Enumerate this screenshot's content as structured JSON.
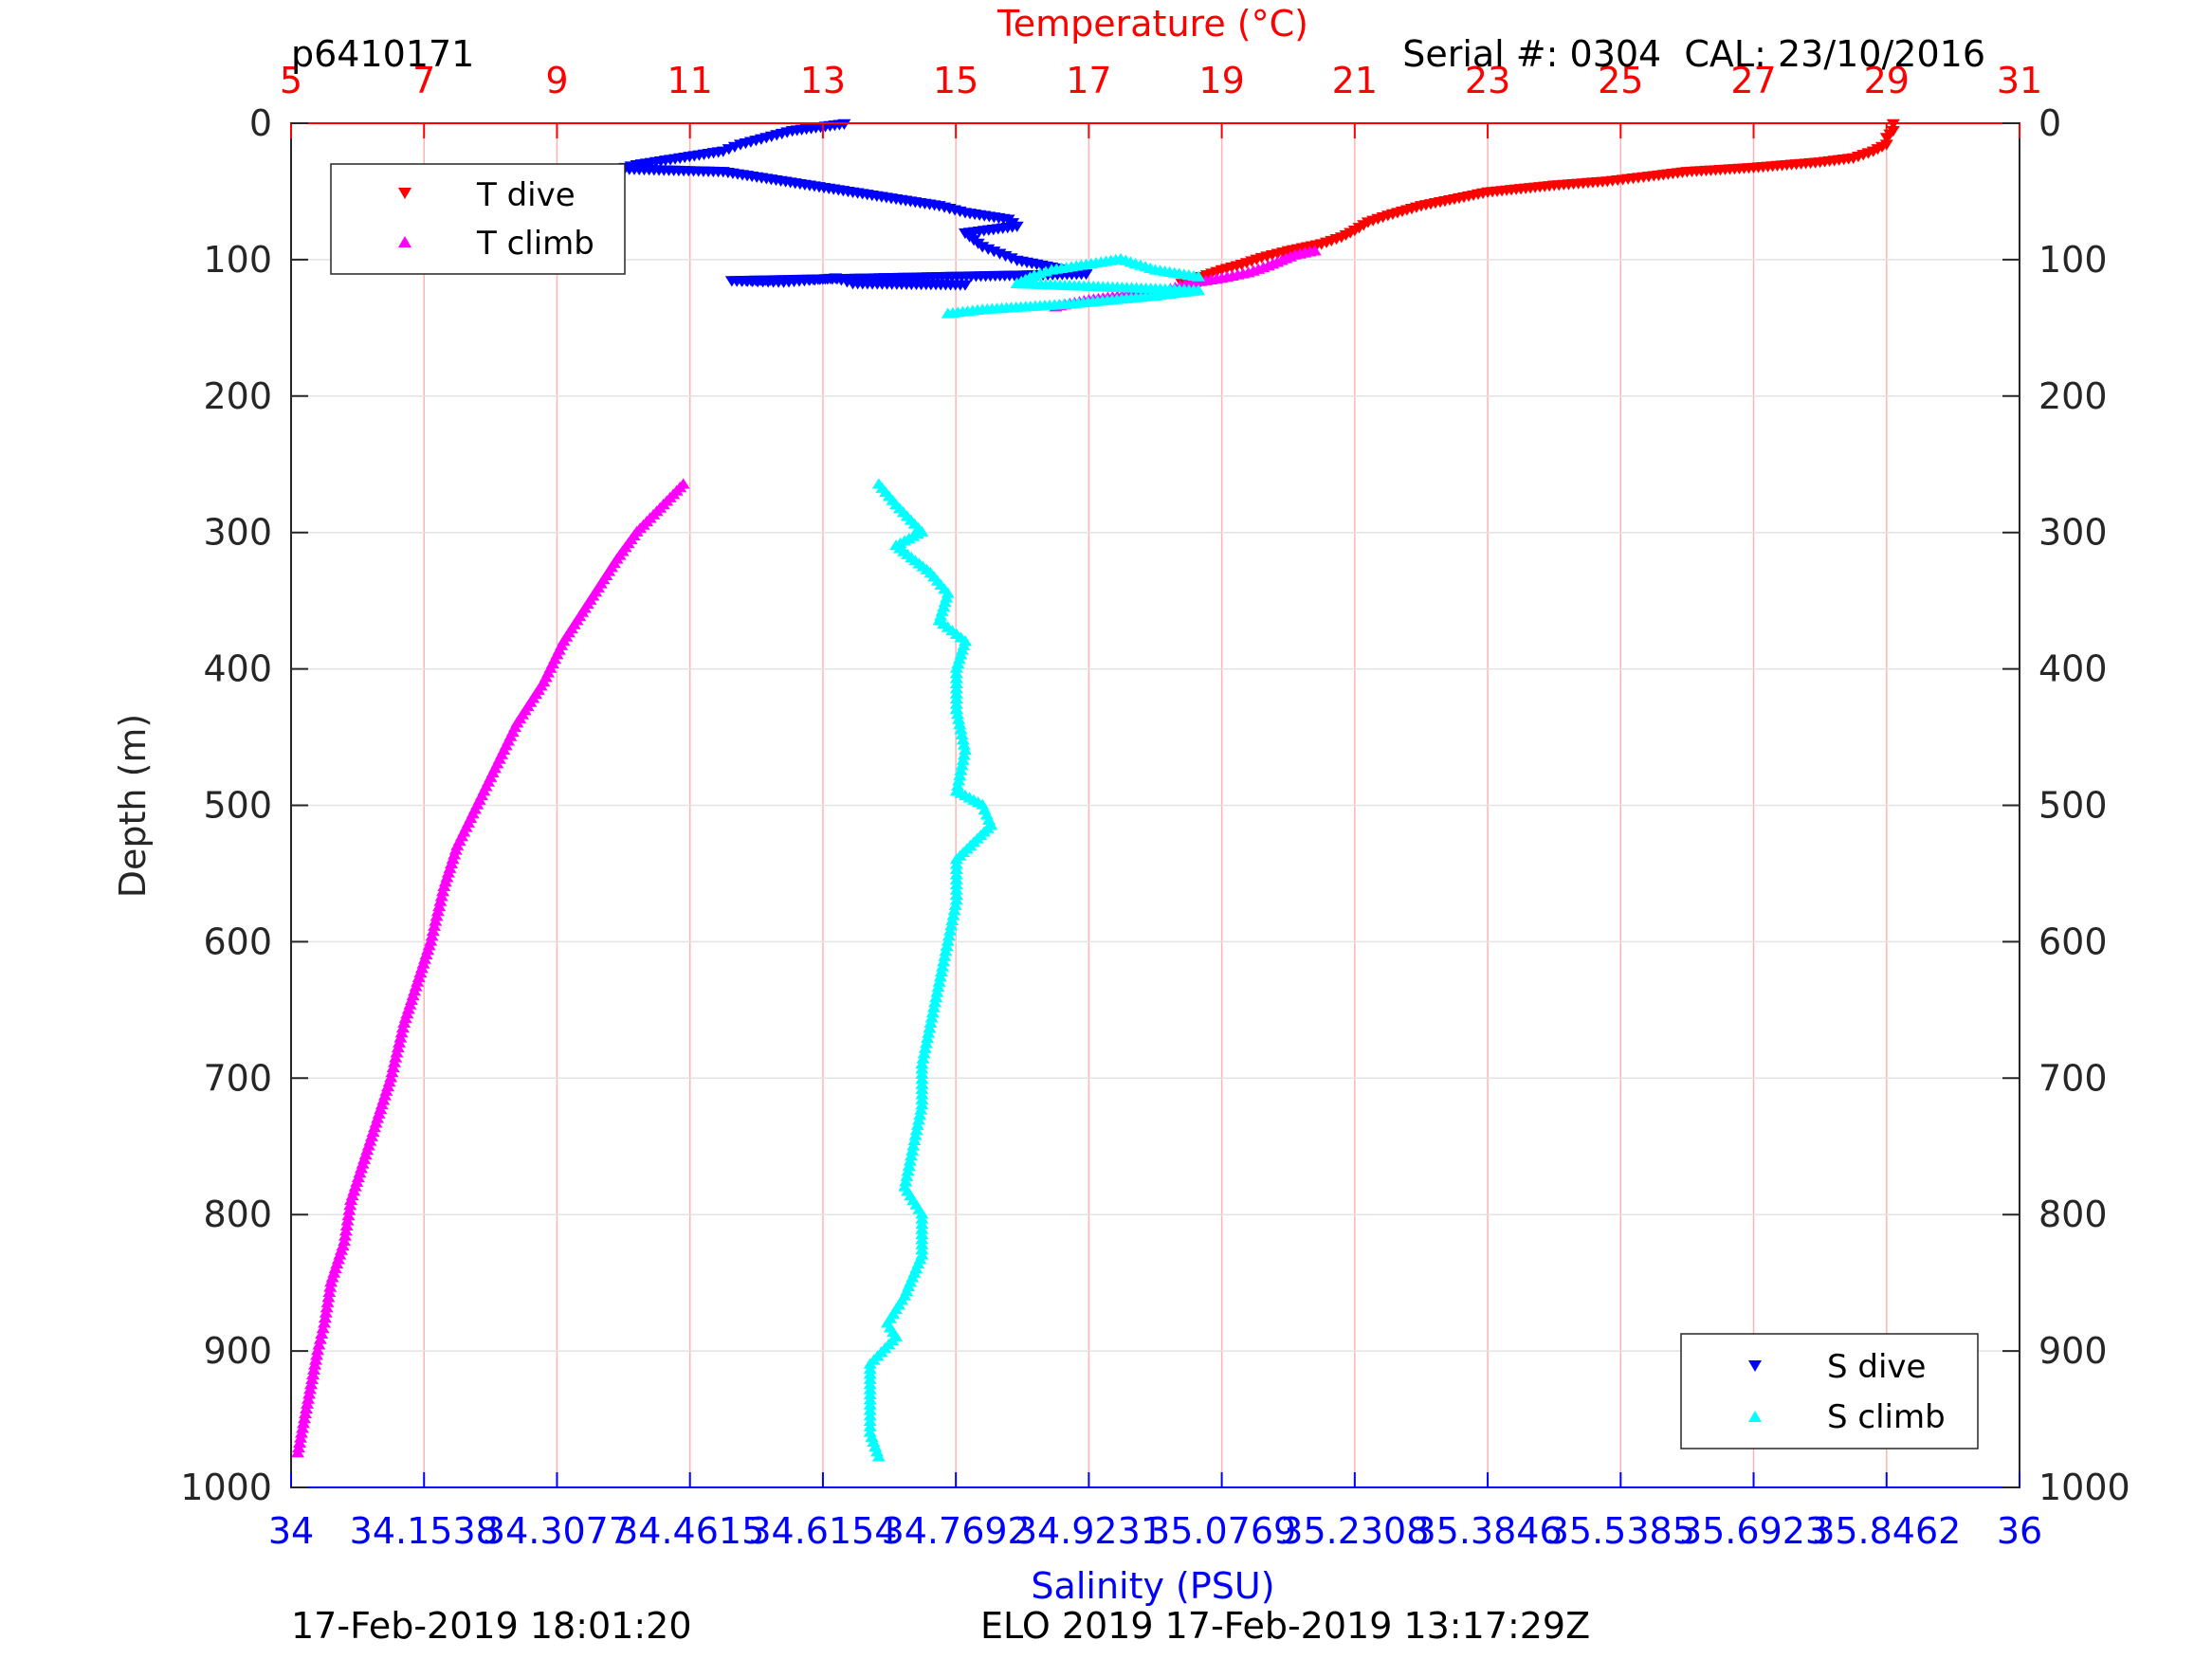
{
  "header": {
    "profile_id": "p6410171",
    "serial_cal": "Serial #: 0304  CAL: 23/10/2016"
  },
  "footer": {
    "left_timestamp": "17-Feb-2019 18:01:20",
    "mission": "ELO 2019 17-Feb-2019 13:17:29Z"
  },
  "colors": {
    "temperature_axis": "#ff0000",
    "salinity_axis": "#0000ff",
    "t_dive": "#ff0000",
    "t_climb": "#ff00ff",
    "s_dive": "#0000ff",
    "s_climb": "#00ffff"
  },
  "chart_data": {
    "type": "scatter",
    "title": "",
    "ylabel": "Depth (m)",
    "ylim": [
      0,
      1000
    ],
    "y_reversed": true,
    "y_ticks": [
      "0",
      "100",
      "200",
      "300",
      "400",
      "500",
      "600",
      "700",
      "800",
      "900",
      "1000"
    ],
    "x_top": {
      "label": "Temperature (°C)",
      "range": [
        5,
        31
      ],
      "ticks": [
        "5",
        "7",
        "9",
        "11",
        "13",
        "15",
        "17",
        "19",
        "21",
        "23",
        "25",
        "27",
        "29",
        "31"
      ]
    },
    "x_bottom": {
      "label": "Salinity (PSU)",
      "range": [
        34,
        36
      ],
      "ticks": [
        "34",
        "34.1538",
        "34.3077",
        "34.4615",
        "34.6154",
        "34.7692",
        "34.9231",
        "35.0769",
        "35.2308",
        "35.3846",
        "35.5385",
        "35.6923",
        "35.8462",
        "36"
      ]
    },
    "grid": true,
    "legends": [
      {
        "position": "top-left",
        "entries": [
          "T dive",
          "T climb"
        ]
      },
      {
        "position": "bottom-right",
        "entries": [
          "S dive",
          "S climb"
        ]
      }
    ],
    "series": [
      {
        "name": "T dive",
        "axis": "temperature",
        "marker": "triangle-down",
        "points": [
          [
            29.1,
            0
          ],
          [
            29.1,
            5
          ],
          [
            29.0,
            10
          ],
          [
            29.0,
            15
          ],
          [
            28.8,
            20
          ],
          [
            28.5,
            25
          ],
          [
            28.0,
            28
          ],
          [
            27.0,
            32
          ],
          [
            26.0,
            35
          ],
          [
            25.5,
            38
          ],
          [
            24.8,
            42
          ],
          [
            24.0,
            45
          ],
          [
            23.0,
            50
          ],
          [
            22.5,
            55
          ],
          [
            22.0,
            60
          ],
          [
            21.5,
            67
          ],
          [
            21.2,
            72
          ],
          [
            21.0,
            78
          ],
          [
            20.8,
            83
          ],
          [
            20.5,
            88
          ],
          [
            20.0,
            93
          ],
          [
            19.6,
            98
          ],
          [
            19.3,
            103
          ],
          [
            19.0,
            107
          ],
          [
            18.7,
            112
          ],
          [
            18.4,
            117
          ]
        ]
      },
      {
        "name": "T climb",
        "axis": "temperature",
        "marker": "triangle-up",
        "points": [
          [
            16.5,
            135
          ],
          [
            17.0,
            130
          ],
          [
            17.5,
            127
          ],
          [
            18.0,
            124
          ],
          [
            18.3,
            121
          ],
          [
            18.6,
            117
          ],
          [
            19.0,
            114
          ],
          [
            19.4,
            110
          ],
          [
            19.7,
            105
          ],
          [
            19.9,
            101
          ],
          [
            20.1,
            97
          ],
          [
            20.4,
            94
          ],
          [
            10.9,
            265
          ],
          [
            10.6,
            280
          ],
          [
            10.2,
            300
          ],
          [
            9.9,
            320
          ],
          [
            9.5,
            350
          ],
          [
            9.1,
            380
          ],
          [
            8.8,
            410
          ],
          [
            8.4,
            440
          ],
          [
            8.1,
            470
          ],
          [
            7.8,
            500
          ],
          [
            7.5,
            530
          ],
          [
            7.3,
            560
          ],
          [
            7.1,
            600
          ],
          [
            6.9,
            630
          ],
          [
            6.7,
            660
          ],
          [
            6.5,
            700
          ],
          [
            6.3,
            730
          ],
          [
            6.1,
            760
          ],
          [
            5.9,
            790
          ],
          [
            5.8,
            820
          ],
          [
            5.6,
            850
          ],
          [
            5.5,
            880
          ],
          [
            5.4,
            900
          ],
          [
            5.3,
            925
          ],
          [
            5.2,
            950
          ],
          [
            5.1,
            975
          ]
        ]
      },
      {
        "name": "S dive",
        "axis": "salinity",
        "marker": "triangle-down",
        "points": [
          [
            34.64,
            0
          ],
          [
            34.58,
            5
          ],
          [
            34.55,
            10
          ],
          [
            34.52,
            15
          ],
          [
            34.5,
            20
          ],
          [
            34.45,
            25
          ],
          [
            34.4,
            30
          ],
          [
            34.38,
            33
          ],
          [
            34.5,
            35
          ],
          [
            34.55,
            40
          ],
          [
            34.6,
            45
          ],
          [
            34.65,
            50
          ],
          [
            34.7,
            55
          ],
          [
            34.75,
            60
          ],
          [
            34.78,
            65
          ],
          [
            34.83,
            70
          ],
          [
            34.84,
            75
          ],
          [
            34.78,
            80
          ],
          [
            34.79,
            85
          ],
          [
            34.8,
            90
          ],
          [
            34.82,
            95
          ],
          [
            34.84,
            100
          ],
          [
            34.88,
            105
          ],
          [
            34.92,
            110
          ],
          [
            34.51,
            115
          ],
          [
            34.57,
            116
          ],
          [
            34.63,
            113
          ],
          [
            34.65,
            117
          ],
          [
            34.78,
            118
          ]
        ]
      },
      {
        "name": "S climb",
        "axis": "salinity",
        "marker": "triangle-up",
        "points": [
          [
            34.76,
            140
          ],
          [
            34.8,
            137
          ],
          [
            34.85,
            135
          ],
          [
            34.9,
            133
          ],
          [
            34.95,
            130
          ],
          [
            35.0,
            127
          ],
          [
            35.05,
            123
          ],
          [
            34.84,
            118
          ],
          [
            34.86,
            112
          ],
          [
            34.88,
            108
          ],
          [
            34.92,
            104
          ],
          [
            34.96,
            100
          ],
          [
            35.0,
            108
          ],
          [
            35.05,
            113
          ],
          [
            34.68,
            265
          ],
          [
            34.7,
            280
          ],
          [
            34.73,
            300
          ],
          [
            34.7,
            310
          ],
          [
            34.74,
            330
          ],
          [
            34.76,
            345
          ],
          [
            34.75,
            365
          ],
          [
            34.78,
            380
          ],
          [
            34.77,
            400
          ],
          [
            34.77,
            430
          ],
          [
            34.78,
            460
          ],
          [
            34.77,
            490
          ],
          [
            34.8,
            500
          ],
          [
            34.81,
            515
          ],
          [
            34.77,
            540
          ],
          [
            34.77,
            570
          ],
          [
            34.76,
            600
          ],
          [
            34.75,
            630
          ],
          [
            34.74,
            660
          ],
          [
            34.73,
            690
          ],
          [
            34.73,
            720
          ],
          [
            34.72,
            750
          ],
          [
            34.71,
            780
          ],
          [
            34.73,
            800
          ],
          [
            34.73,
            830
          ],
          [
            34.71,
            860
          ],
          [
            34.69,
            880
          ],
          [
            34.7,
            890
          ],
          [
            34.67,
            910
          ],
          [
            34.67,
            940
          ],
          [
            34.67,
            960
          ],
          [
            34.68,
            978
          ]
        ]
      }
    ]
  }
}
